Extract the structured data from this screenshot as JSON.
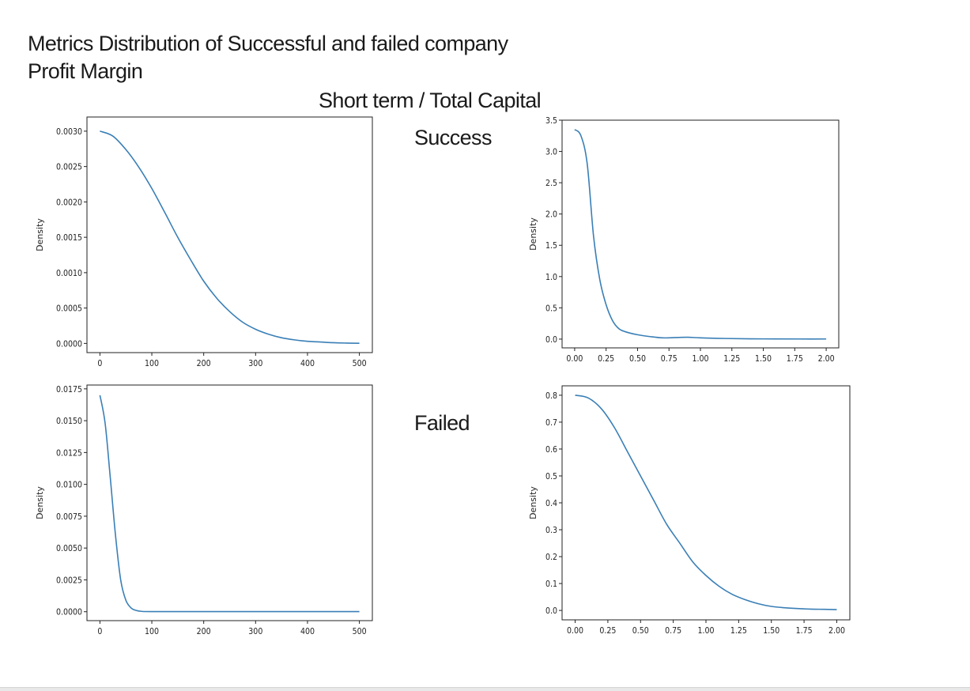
{
  "header": {
    "title_line1": "Metrics Distribution of Successful and failed company",
    "title_line2": "Profit Margin",
    "subtitle": "Short term / Total Capital",
    "label_success": "Success",
    "label_failed": "Failed"
  },
  "colors": {
    "line": "#3a7fb6",
    "axis": "#222222"
  },
  "chart_data": [
    {
      "type": "line",
      "ylabel": "Density",
      "xlim": [
        -25,
        525
      ],
      "ylim": [
        -0.00013,
        0.0032
      ],
      "xticks": [
        0,
        100,
        200,
        300,
        400,
        500
      ],
      "xtick_labels": [
        "0",
        "100",
        "200",
        "300",
        "400",
        "500"
      ],
      "yticks": [
        0,
        0.0005,
        0.001,
        0.0015,
        0.002,
        0.0025,
        0.003
      ],
      "ytick_labels": [
        "0.0000",
        "0.0005",
        "0.0010",
        "0.0015",
        "0.0020",
        "0.0025",
        "0.0030"
      ],
      "x": [
        0,
        25,
        50,
        75,
        100,
        125,
        150,
        175,
        200,
        225,
        250,
        275,
        300,
        325,
        350,
        375,
        400,
        425,
        450,
        475,
        500
      ],
      "y": [
        0.003,
        0.00293,
        0.00274,
        0.00249,
        0.00219,
        0.00185,
        0.0015,
        0.00118,
        0.00088,
        0.00064,
        0.00045,
        0.0003,
        0.0002,
        0.00013,
        8e-05,
        5e-05,
        3e-05,
        2e-05,
        1e-05,
        5e-06,
        2e-06
      ]
    },
    {
      "type": "line",
      "ylabel": "Density",
      "xlim": [
        -0.1,
        2.1
      ],
      "ylim": [
        -0.14,
        3.5
      ],
      "xticks": [
        0,
        0.25,
        0.5,
        0.75,
        1,
        1.25,
        1.5,
        1.75,
        2
      ],
      "xtick_labels": [
        "0.00",
        "0.25",
        "0.50",
        "0.75",
        "1.00",
        "1.25",
        "1.50",
        "1.75",
        "2.00"
      ],
      "yticks": [
        0,
        0.5,
        1,
        1.5,
        2,
        2.5,
        3,
        3.5
      ],
      "ytick_labels": [
        "0.0",
        "0.5",
        "1.0",
        "1.5",
        "2.0",
        "2.5",
        "3.0",
        "3.5"
      ],
      "x": [
        0,
        0.05,
        0.1,
        0.15,
        0.2,
        0.25,
        0.3,
        0.35,
        0.4,
        0.5,
        0.6,
        0.7,
        0.8,
        0.9,
        1.0,
        1.2,
        1.4,
        1.6,
        1.8,
        2.0
      ],
      "y": [
        3.35,
        3.25,
        2.8,
        1.65,
        0.95,
        0.55,
        0.3,
        0.17,
        0.12,
        0.07,
        0.04,
        0.02,
        0.025,
        0.03,
        0.02,
        0.01,
        0.005,
        0.003,
        0.002,
        0.002
      ]
    },
    {
      "type": "line",
      "ylabel": "Density",
      "xlim": [
        -25,
        525
      ],
      "ylim": [
        -0.0007,
        0.0178
      ],
      "xticks": [
        0,
        100,
        200,
        300,
        400,
        500
      ],
      "xtick_labels": [
        "0",
        "100",
        "200",
        "300",
        "400",
        "500"
      ],
      "yticks": [
        0,
        0.0025,
        0.005,
        0.0075,
        0.01,
        0.0125,
        0.015,
        0.0175
      ],
      "ytick_labels": [
        "0.0000",
        "0.0025",
        "0.0050",
        "0.0075",
        "0.0100",
        "0.0125",
        "0.0150",
        "0.0175"
      ],
      "x": [
        0,
        10,
        20,
        30,
        40,
        50,
        60,
        70,
        80,
        100,
        200,
        300,
        400,
        500
      ],
      "y": [
        0.017,
        0.0148,
        0.0105,
        0.006,
        0.0025,
        0.0009,
        0.0003,
        0.0001,
        3e-05,
        1e-05,
        1e-05,
        1e-05,
        1e-05,
        1e-05
      ]
    },
    {
      "type": "line",
      "ylabel": "Density",
      "xlim": [
        -0.1,
        2.1
      ],
      "ylim": [
        -0.035,
        0.835
      ],
      "xticks": [
        0,
        0.25,
        0.5,
        0.75,
        1,
        1.25,
        1.5,
        1.75,
        2
      ],
      "xtick_labels": [
        "0.00",
        "0.25",
        "0.50",
        "0.75",
        "1.00",
        "1.25",
        "1.50",
        "1.75",
        "2.00"
      ],
      "yticks": [
        0,
        0.1,
        0.2,
        0.3,
        0.4,
        0.5,
        0.6,
        0.7,
        0.8
      ],
      "ytick_labels": [
        "0.0",
        "0.1",
        "0.2",
        "0.3",
        "0.4",
        "0.5",
        "0.6",
        "0.7",
        "0.8"
      ],
      "x": [
        0,
        0.1,
        0.2,
        0.3,
        0.4,
        0.5,
        0.6,
        0.7,
        0.8,
        0.9,
        1.0,
        1.1,
        1.2,
        1.3,
        1.4,
        1.5,
        1.6,
        1.7,
        1.8,
        1.9,
        2.0
      ],
      "y": [
        0.8,
        0.79,
        0.75,
        0.68,
        0.59,
        0.5,
        0.41,
        0.32,
        0.25,
        0.18,
        0.13,
        0.09,
        0.06,
        0.04,
        0.025,
        0.015,
        0.01,
        0.007,
        0.005,
        0.004,
        0.003
      ]
    }
  ]
}
